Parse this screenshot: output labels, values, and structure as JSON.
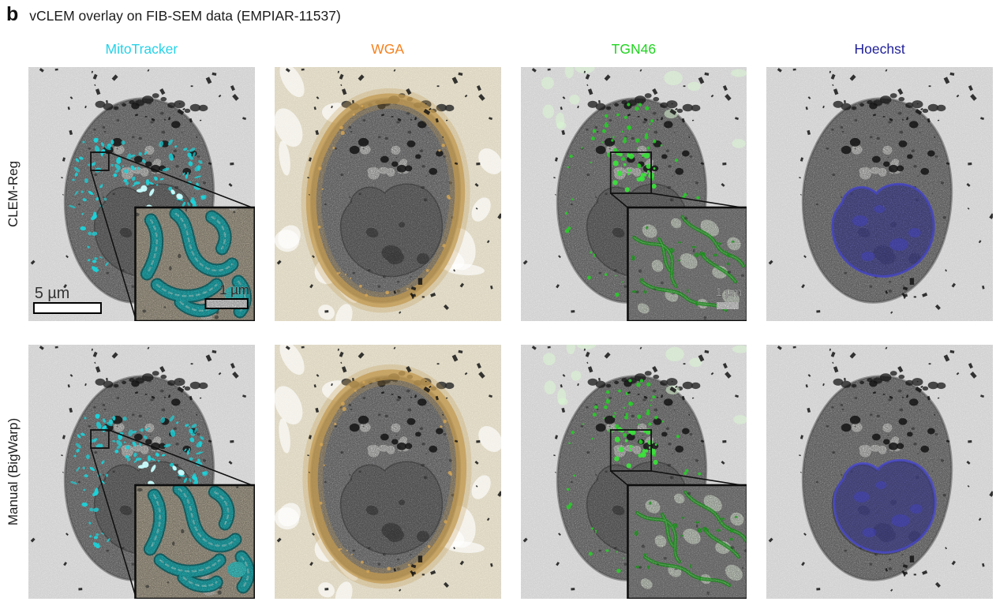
{
  "figure": {
    "panel_label": "b",
    "title": "vCLEM overlay on FIB-SEM data (EMPIAR-11537)"
  },
  "columns": [
    {
      "label": "MitoTracker",
      "color": "#25d2e8",
      "channel": "mito"
    },
    {
      "label": "WGA",
      "color": "#f58220",
      "channel": "wga"
    },
    {
      "label": "TGN46",
      "color": "#1fd41f",
      "channel": "tgn"
    },
    {
      "label": "Hoechst",
      "color": "#21219b",
      "channel": "hoechst"
    }
  ],
  "rows": [
    {
      "label": "CLEM-Reg"
    },
    {
      "label": "Manual (BigWarp)"
    }
  ],
  "scale_bars": {
    "main_label": "5 µm",
    "inset_label": "1 µm"
  },
  "overlay_colors": {
    "mito": "#1bd3da",
    "mito_bright": "#c9feff",
    "wga_rim": "#c19a52",
    "wga_background": "#f4edd8",
    "tgn": "#25d225",
    "tgn_pale": "#d8f5d2",
    "hoechst_fill": "#5c5cd8",
    "em_gray": "#a7a7a7",
    "panel_background": "#e9e9e9"
  }
}
